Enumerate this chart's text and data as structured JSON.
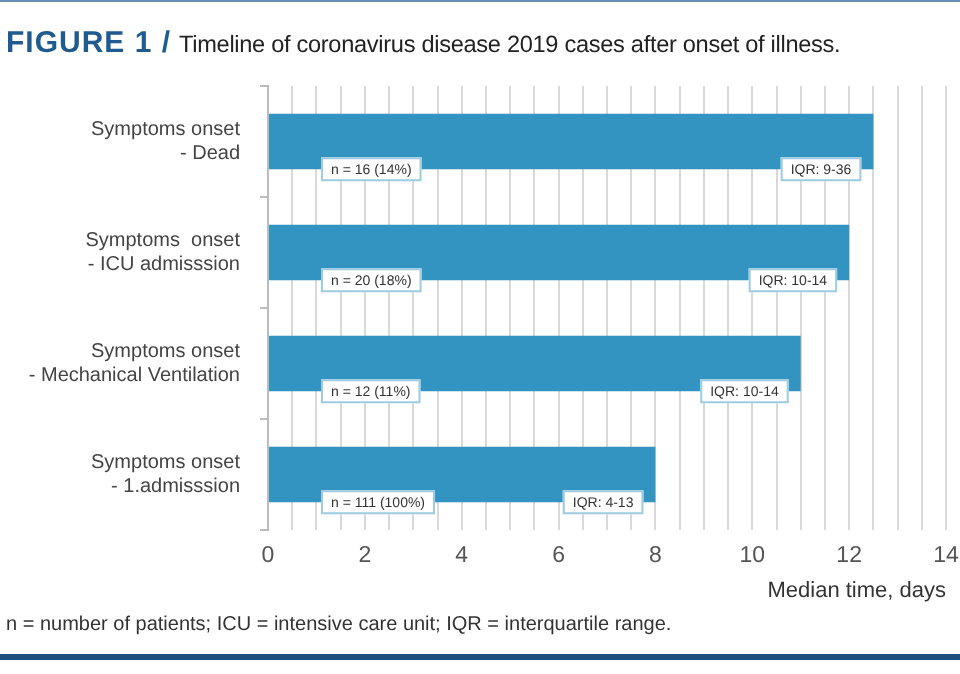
{
  "chart_data": {
    "type": "bar",
    "orientation": "horizontal",
    "title": "FIGURE 1 /",
    "subtitle": "Timeline of coronavirus disease 2019 cases after onset of illness.",
    "xlabel": "Median time, days",
    "categories": [
      "Symptoms onset\n- Dead",
      "Symptoms  onset\n- ICU admisssion",
      "Symptoms onset\n- Mechanical Ventilation",
      "Symptoms onset\n- 1.admisssion"
    ],
    "values": [
      12.5,
      12,
      11,
      8
    ],
    "color": "#3393c1",
    "xlim": [
      0,
      14
    ],
    "xticks": [
      0,
      {
        "value": 0.5,
        "label": null
      },
      {
        "value": 1,
        "label": null
      },
      {
        "value": 1.5,
        "label": null
      },
      2,
      {
        "value": 2.5,
        "label": null
      },
      {
        "value": 3,
        "label": null
      },
      {
        "value": 3.5,
        "label": null
      },
      4,
      {
        "value": 4.5,
        "label": null
      },
      {
        "value": 5,
        "label": null
      },
      {
        "value": 5.5,
        "label": null
      },
      6,
      {
        "value": 6.5,
        "label": null
      },
      {
        "value": 7,
        "label": null
      },
      {
        "value": 7.5,
        "label": null
      },
      8,
      {
        "value": 8.5,
        "label": null
      },
      {
        "value": 9,
        "label": null
      },
      {
        "value": 9.5,
        "label": null
      },
      10,
      {
        "value": 10.5,
        "label": null
      },
      {
        "value": 11,
        "label": null
      },
      {
        "value": 11.5,
        "label": null
      },
      12,
      {
        "value": 12.5,
        "label": null
      },
      {
        "value": 13,
        "label": null
      },
      {
        "value": 13.5,
        "label": null
      },
      14
    ],
    "grid": "x",
    "annotations": [
      "n = 16 (14%)",
      "IQR: 9-36",
      "n = 20 (18%)",
      "IQR: 10-14",
      "n = 12 (11%)",
      "IQR: 10-14",
      "n = 111 (100%)",
      "IQR: 4-13",
      "n = number of patients; ICU = intensive care unit; IQR = interquartile range."
    ]
  }
}
